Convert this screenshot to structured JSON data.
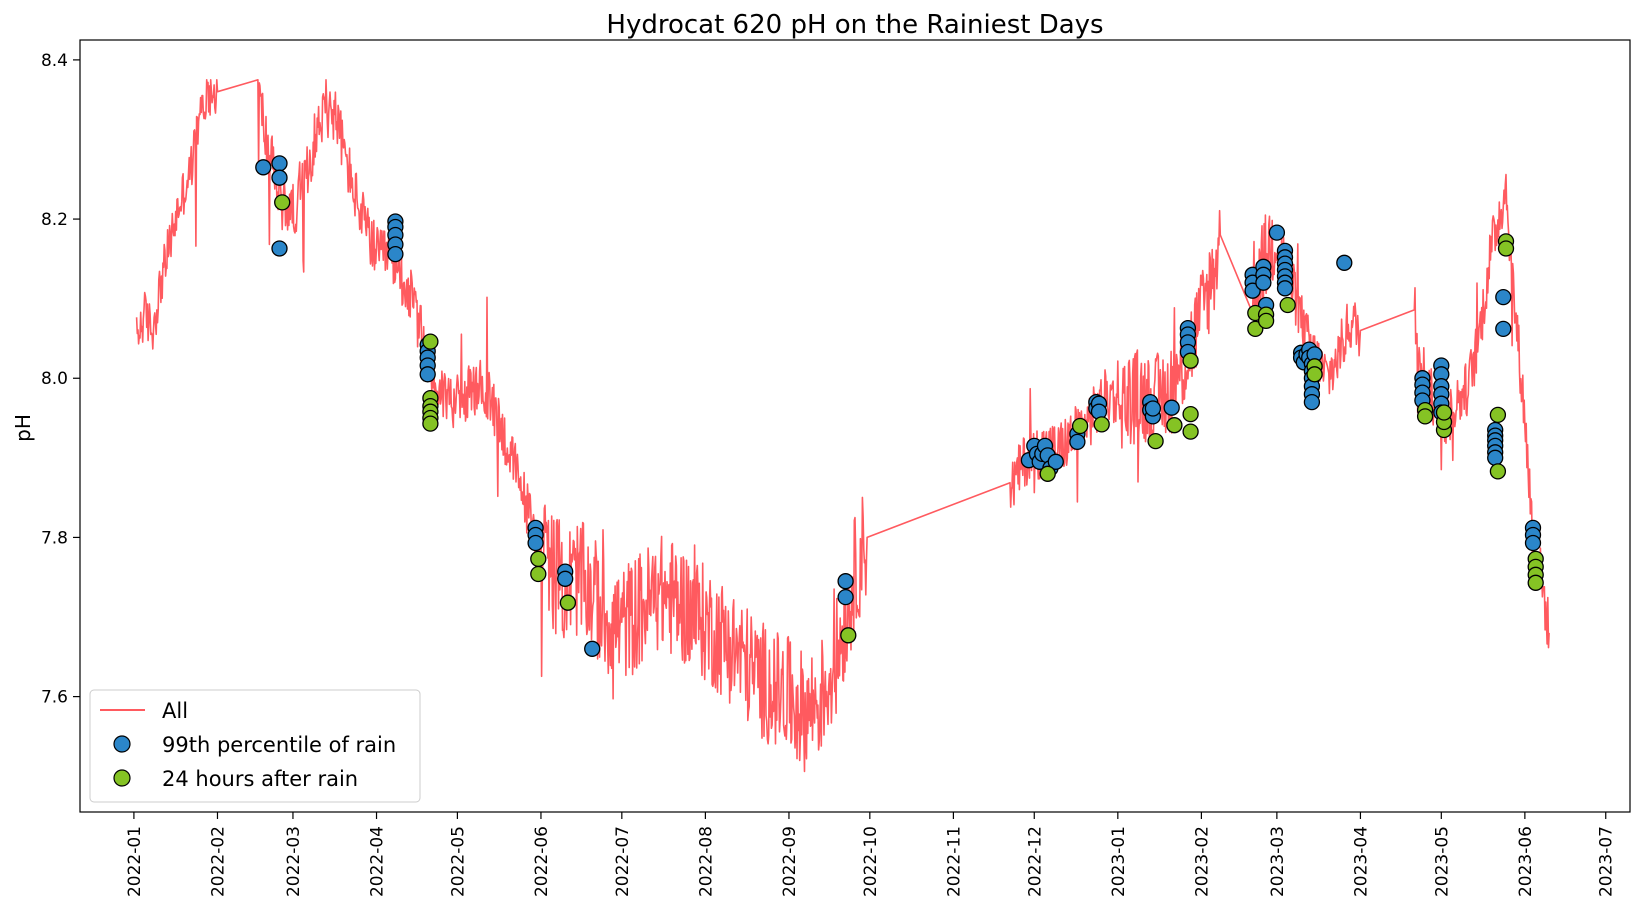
{
  "chart_data": {
    "type": "line",
    "title": "Hydrocat 620 pH on the Rainiest Days",
    "xlabel": "",
    "ylabel": "pH",
    "x_type": "date",
    "xlim": [
      "2021-12-12",
      "2023-07-10"
    ],
    "ylim": [
      7.455,
      8.425
    ],
    "x_ticks": [
      "2022-01-01",
      "2022-02-01",
      "2022-03-01",
      "2022-04-01",
      "2022-05-01",
      "2022-06-01",
      "2022-07-01",
      "2022-08-01",
      "2022-09-01",
      "2022-10-01",
      "2022-11-01",
      "2022-12-01",
      "2023-01-01",
      "2023-02-01",
      "2023-03-01",
      "2023-04-01",
      "2023-05-01",
      "2023-06-01",
      "2023-07-01"
    ],
    "x_tick_labels": [
      "2022-01",
      "2022-02",
      "2022-03",
      "2022-04",
      "2022-05",
      "2022-06",
      "2022-07",
      "2022-08",
      "2022-09",
      "2022-10",
      "2022-11",
      "2022-12",
      "2023-01",
      "2023-02",
      "2023-03",
      "2023-04",
      "2023-05",
      "2023-06",
      "2023-07"
    ],
    "y_ticks": [
      7.6,
      7.8,
      8.0,
      8.2,
      8.4
    ],
    "y_tick_labels": [
      "7.6",
      "7.8",
      "8.0",
      "8.2",
      "8.4"
    ],
    "grid": false,
    "legend_position": "lower-left",
    "colors": {
      "all": "#ff5a5f",
      "rain": "#2b86c9",
      "after": "#85c324"
    },
    "series": [
      {
        "name": "All",
        "kind": "line",
        "color": "#ff5a5f",
        "anchors": [
          [
            "2022-01-02",
            8.05
          ],
          [
            "2022-01-05",
            8.08
          ],
          [
            "2022-01-08",
            8.06
          ],
          [
            "2022-01-11",
            8.12
          ],
          [
            "2022-01-15",
            8.18
          ],
          [
            "2022-01-18",
            8.22
          ],
          [
            "2022-01-22",
            8.26
          ],
          [
            "2022-01-25",
            8.32
          ],
          [
            "2022-01-28",
            8.36
          ],
          [
            "2022-02-01",
            8.36
          ],
          [
            "2022-02-16",
            8.37
          ],
          [
            "2022-02-19",
            8.3
          ],
          [
            "2022-02-22",
            8.26
          ],
          [
            "2022-02-25",
            8.22
          ],
          [
            "2022-03-01",
            8.21
          ],
          [
            "2022-03-05",
            8.24
          ],
          [
            "2022-03-09",
            8.3
          ],
          [
            "2022-03-13",
            8.34
          ],
          [
            "2022-03-17",
            8.33
          ],
          [
            "2022-03-21",
            8.27
          ],
          [
            "2022-03-25",
            8.22
          ],
          [
            "2022-03-29",
            8.18
          ],
          [
            "2022-04-02",
            8.15
          ],
          [
            "2022-04-06",
            8.16
          ],
          [
            "2022-04-10",
            8.13
          ],
          [
            "2022-04-14",
            8.1
          ],
          [
            "2022-04-18",
            8.05
          ],
          [
            "2022-04-22",
            8.0
          ],
          [
            "2022-04-26",
            7.98
          ],
          [
            "2022-05-01",
            7.97
          ],
          [
            "2022-05-05",
            7.98
          ],
          [
            "2022-05-10",
            7.99
          ],
          [
            "2022-05-15",
            7.96
          ],
          [
            "2022-05-20",
            7.91
          ],
          [
            "2022-05-25",
            7.86
          ],
          [
            "2022-05-30",
            7.8
          ],
          [
            "2022-06-05",
            7.76
          ],
          [
            "2022-06-10",
            7.74
          ],
          [
            "2022-06-15",
            7.75
          ],
          [
            "2022-06-20",
            7.73
          ],
          [
            "2022-06-25",
            7.7
          ],
          [
            "2022-07-01",
            7.69
          ],
          [
            "2022-07-08",
            7.71
          ],
          [
            "2022-07-15",
            7.73
          ],
          [
            "2022-07-22",
            7.72
          ],
          [
            "2022-07-29",
            7.7
          ],
          [
            "2022-08-05",
            7.68
          ],
          [
            "2022-08-12",
            7.66
          ],
          [
            "2022-08-19",
            7.63
          ],
          [
            "2022-08-26",
            7.61
          ],
          [
            "2022-09-01",
            7.6
          ],
          [
            "2022-09-07",
            7.58
          ],
          [
            "2022-09-13",
            7.6
          ],
          [
            "2022-09-18",
            7.64
          ],
          [
            "2022-09-22",
            7.7
          ],
          [
            "2022-09-26",
            7.76
          ],
          [
            "2022-09-30",
            7.8
          ],
          [
            "2022-11-22",
            7.86
          ],
          [
            "2022-11-28",
            7.9
          ],
          [
            "2022-12-04",
            7.91
          ],
          [
            "2022-12-10",
            7.91
          ],
          [
            "2022-12-16",
            7.93
          ],
          [
            "2022-12-22",
            7.95
          ],
          [
            "2022-12-28",
            7.98
          ],
          [
            "2023-01-03",
            7.97
          ],
          [
            "2023-01-09",
            7.98
          ],
          [
            "2023-01-15",
            7.97
          ],
          [
            "2023-01-21",
            7.99
          ],
          [
            "2023-01-27",
            8.03
          ],
          [
            "2023-02-01",
            8.08
          ],
          [
            "2023-02-06",
            8.14
          ],
          [
            "2023-02-08",
            8.18
          ],
          [
            "2023-02-20",
            8.12
          ],
          [
            "2023-02-24",
            8.14
          ],
          [
            "2023-02-28",
            8.18
          ],
          [
            "2023-03-04",
            8.15
          ],
          [
            "2023-03-08",
            8.1
          ],
          [
            "2023-03-12",
            8.05
          ],
          [
            "2023-03-16",
            8.02
          ],
          [
            "2023-03-20",
            8.0
          ],
          [
            "2023-03-24",
            8.03
          ],
          [
            "2023-03-28",
            8.07
          ],
          [
            "2023-04-01",
            8.06
          ],
          [
            "2023-04-21",
            8.08
          ],
          [
            "2023-04-25",
            8.0
          ],
          [
            "2023-04-29",
            7.96
          ],
          [
            "2023-05-03",
            7.95
          ],
          [
            "2023-05-07",
            7.97
          ],
          [
            "2023-05-11",
            7.99
          ],
          [
            "2023-05-15",
            8.05
          ],
          [
            "2023-05-19",
            8.15
          ],
          [
            "2023-05-22",
            8.2
          ],
          [
            "2023-05-25",
            8.24
          ],
          [
            "2023-05-28",
            8.1
          ],
          [
            "2023-06-01",
            7.95
          ],
          [
            "2023-06-04",
            7.8
          ],
          [
            "2023-06-07",
            7.75
          ],
          [
            "2023-06-10",
            7.68
          ]
        ]
      },
      {
        "name": "99th percentile of rain",
        "kind": "scatter",
        "color": "#2b86c9",
        "points": [
          [
            "2022-02-18",
            8.265
          ],
          [
            "2022-02-24",
            8.27
          ],
          [
            "2022-02-24",
            8.252
          ],
          [
            "2022-02-24",
            8.163
          ],
          [
            "2022-04-08",
            8.197
          ],
          [
            "2022-04-08",
            8.19
          ],
          [
            "2022-04-08",
            8.18
          ],
          [
            "2022-04-08",
            8.168
          ],
          [
            "2022-04-08",
            8.156
          ],
          [
            "2022-04-20",
            8.042
          ],
          [
            "2022-04-20",
            8.034
          ],
          [
            "2022-04-20",
            8.026
          ],
          [
            "2022-04-20",
            8.016
          ],
          [
            "2022-04-20",
            8.005
          ],
          [
            "2022-05-30",
            7.812
          ],
          [
            "2022-05-30",
            7.803
          ],
          [
            "2022-05-30",
            7.793
          ],
          [
            "2022-06-10",
            7.757
          ],
          [
            "2022-06-10",
            7.748
          ],
          [
            "2022-06-20",
            7.66
          ],
          [
            "2022-09-22",
            7.745
          ],
          [
            "2022-09-22",
            7.725
          ],
          [
            "2022-11-29",
            7.897
          ],
          [
            "2022-12-01",
            7.915
          ],
          [
            "2022-12-02",
            7.905
          ],
          [
            "2022-12-03",
            7.895
          ],
          [
            "2022-12-04",
            7.905
          ],
          [
            "2022-12-05",
            7.915
          ],
          [
            "2022-12-06",
            7.903
          ],
          [
            "2022-12-07",
            7.887
          ],
          [
            "2022-12-09",
            7.895
          ],
          [
            "2022-12-17",
            7.93
          ],
          [
            "2022-12-17",
            7.92
          ],
          [
            "2022-12-24",
            7.97
          ],
          [
            "2022-12-24",
            7.962
          ],
          [
            "2022-12-25",
            7.968
          ],
          [
            "2022-12-25",
            7.958
          ],
          [
            "2023-01-13",
            7.97
          ],
          [
            "2023-01-13",
            7.96
          ],
          [
            "2023-01-14",
            7.952
          ],
          [
            "2023-01-14",
            7.962
          ],
          [
            "2023-01-21",
            7.963
          ],
          [
            "2023-01-27",
            8.063
          ],
          [
            "2023-01-27",
            8.055
          ],
          [
            "2023-01-27",
            8.045
          ],
          [
            "2023-01-27",
            8.033
          ],
          [
            "2023-02-20",
            8.13
          ],
          [
            "2023-02-20",
            8.12
          ],
          [
            "2023-02-20",
            8.11
          ],
          [
            "2023-02-24",
            8.14
          ],
          [
            "2023-02-24",
            8.13
          ],
          [
            "2023-02-24",
            8.12
          ],
          [
            "2023-02-25",
            8.092
          ],
          [
            "2023-03-01",
            8.183
          ],
          [
            "2023-03-04",
            8.16
          ],
          [
            "2023-03-04",
            8.152
          ],
          [
            "2023-03-04",
            8.144
          ],
          [
            "2023-03-04",
            8.136
          ],
          [
            "2023-03-04",
            8.128
          ],
          [
            "2023-03-04",
            8.12
          ],
          [
            "2023-03-04",
            8.113
          ],
          [
            "2023-03-10",
            8.032
          ],
          [
            "2023-03-10",
            8.026
          ],
          [
            "2023-03-11",
            8.02
          ],
          [
            "2023-03-12",
            8.03
          ],
          [
            "2023-03-13",
            8.036
          ],
          [
            "2023-03-13",
            8.026
          ],
          [
            "2023-03-14",
            8.018
          ],
          [
            "2023-03-14",
            8.009
          ],
          [
            "2023-03-14",
            8.0
          ],
          [
            "2023-03-14",
            7.99
          ],
          [
            "2023-03-14",
            7.98
          ],
          [
            "2023-03-14",
            7.97
          ],
          [
            "2023-03-15",
            8.03
          ],
          [
            "2023-03-26",
            8.145
          ],
          [
            "2023-04-24",
            8.0
          ],
          [
            "2023-04-24",
            7.992
          ],
          [
            "2023-04-24",
            7.982
          ],
          [
            "2023-04-24",
            7.972
          ],
          [
            "2023-05-01",
            8.016
          ],
          [
            "2023-05-01",
            8.005
          ],
          [
            "2023-05-01",
            7.99
          ],
          [
            "2023-05-01",
            7.98
          ],
          [
            "2023-05-01",
            7.968
          ],
          [
            "2023-05-01",
            7.957
          ],
          [
            "2023-05-21",
            7.935
          ],
          [
            "2023-05-21",
            7.928
          ],
          [
            "2023-05-21",
            7.922
          ],
          [
            "2023-05-21",
            7.915
          ],
          [
            "2023-05-21",
            7.907
          ],
          [
            "2023-05-21",
            7.9
          ],
          [
            "2023-05-24",
            8.102
          ],
          [
            "2023-05-24",
            8.062
          ],
          [
            "2023-06-04",
            7.812
          ],
          [
            "2023-06-04",
            7.803
          ],
          [
            "2023-06-04",
            7.793
          ]
        ]
      },
      {
        "name": "24 hours after rain",
        "kind": "scatter",
        "color": "#85c324",
        "points": [
          [
            "2022-02-25",
            8.221
          ],
          [
            "2022-04-21",
            8.046
          ],
          [
            "2022-04-21",
            7.975
          ],
          [
            "2022-04-21",
            7.965
          ],
          [
            "2022-04-21",
            7.958
          ],
          [
            "2022-04-21",
            7.95
          ],
          [
            "2022-04-21",
            7.943
          ],
          [
            "2022-05-31",
            7.773
          ],
          [
            "2022-05-31",
            7.754
          ],
          [
            "2022-06-11",
            7.718
          ],
          [
            "2022-09-23",
            7.677
          ],
          [
            "2022-12-06",
            7.88
          ],
          [
            "2022-12-18",
            7.94
          ],
          [
            "2022-12-26",
            7.942
          ],
          [
            "2023-01-15",
            7.921
          ],
          [
            "2023-01-22",
            7.941
          ],
          [
            "2023-01-28",
            7.933
          ],
          [
            "2023-01-28",
            7.955
          ],
          [
            "2023-01-28",
            8.022
          ],
          [
            "2023-02-21",
            8.082
          ],
          [
            "2023-02-21",
            8.062
          ],
          [
            "2023-02-25",
            8.08
          ],
          [
            "2023-02-25",
            8.072
          ],
          [
            "2023-03-05",
            8.092
          ],
          [
            "2023-03-15",
            8.015
          ],
          [
            "2023-03-15",
            8.005
          ],
          [
            "2023-04-25",
            7.96
          ],
          [
            "2023-04-25",
            7.952
          ],
          [
            "2023-05-02",
            7.935
          ],
          [
            "2023-05-02",
            7.945
          ],
          [
            "2023-05-02",
            7.957
          ],
          [
            "2023-05-22",
            7.954
          ],
          [
            "2023-05-22",
            7.883
          ],
          [
            "2023-05-25",
            8.172
          ],
          [
            "2023-05-25",
            8.163
          ],
          [
            "2023-06-05",
            7.773
          ],
          [
            "2023-06-05",
            7.763
          ],
          [
            "2023-06-05",
            7.753
          ],
          [
            "2023-06-05",
            7.743
          ]
        ]
      }
    ]
  }
}
